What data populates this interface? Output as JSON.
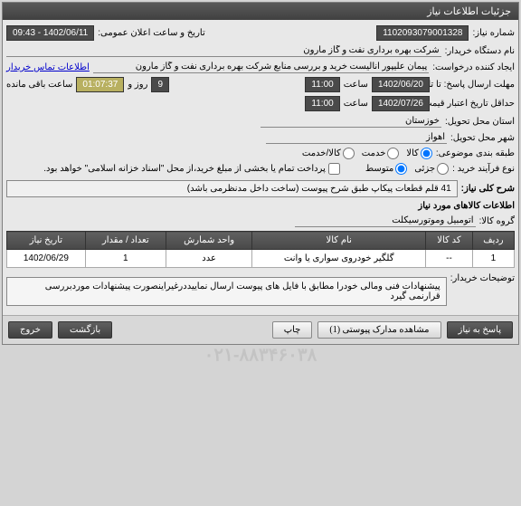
{
  "header": {
    "title": "جزئیات اطلاعات نیاز"
  },
  "form": {
    "need_no_label": "شماره نیاز:",
    "need_no": "1102093079001328",
    "announce_label": "تاریخ و ساعت اعلان عمومی:",
    "announce": "1402/06/11 - 09:43",
    "buyer_label": "نام دستگاه خریدار:",
    "buyer": "شرکت بهره برداری نفت و گاز مارون",
    "requester_label": "ایجاد کننده درخواست:",
    "requester": "پیمان علیپور آنالیست خرید و بررسی منابع شرکت بهره برداری نفت و گاز مارون",
    "contact_link": "اطلاعات تماس خریدار",
    "deadline_label": "مهلت ارسال پاسخ: تا تاریخ:",
    "deadline_date": "1402/06/20",
    "time_label": "ساعت",
    "deadline_time": "11:00",
    "days_label": "روز و",
    "days": "9",
    "remain_label": "ساعت باقی مانده",
    "remain_time": "01:07:37",
    "price_valid_label": "حداقل تاریخ اعتبار قیمت: تا تاریخ:",
    "price_valid_date": "1402/07/26",
    "price_valid_time": "11:00",
    "province_label": "استان محل تحویل:",
    "province": "خوزستان",
    "city_label": "شهر محل تحویل:",
    "city": "اهواز",
    "category_label": "طبقه بندی موضوعی:",
    "cat_goods": "کالا",
    "cat_service": "خدمت",
    "cat_goods_service": "کالا/خدمت",
    "process_label": "نوع فرآیند خرید :",
    "proc_small": "جزئی",
    "proc_medium": "متوسط",
    "payment_checkbox": "پرداخت تمام یا بخشی از مبلغ خرید،از محل \"اسناد خزانه اسلامی\" خواهد بود.",
    "need_desc_label": "شرح کلی نیاز:",
    "need_desc": "41 قلم قطعات پیکاپ طبق شرح پیوست (ساخت داخل مدنظرمی باشد)",
    "items_section": "اطلاعات کالاهای مورد نیاز",
    "group_label": "گروه کالا:",
    "group": "اتومبیل وموتورسیکلت",
    "buyer_notes_label": "توضیحات خریدار:",
    "buyer_notes": "پیشنهادات فنی ومالی خودرا  مطابق با فایل های پیوست ارسال نماییددرغیراینصورت پیشنهادات موردبررسی قرارنمی گیرد"
  },
  "table": {
    "cols": [
      "ردیف",
      "کد کالا",
      "نام کالا",
      "واحد شمارش",
      "تعداد / مقدار",
      "تاریخ نیاز"
    ],
    "rows": [
      [
        "1",
        "--",
        "گلگیر خودروی سواری یا وانت",
        "عدد",
        "1",
        "1402/06/29"
      ]
    ]
  },
  "buttons": {
    "respond": "پاسخ به نیاز",
    "attachments": "مشاهده مدارک پیوستی (1)",
    "print": "چاپ",
    "back": "بازگشت",
    "exit": "خروج"
  }
}
